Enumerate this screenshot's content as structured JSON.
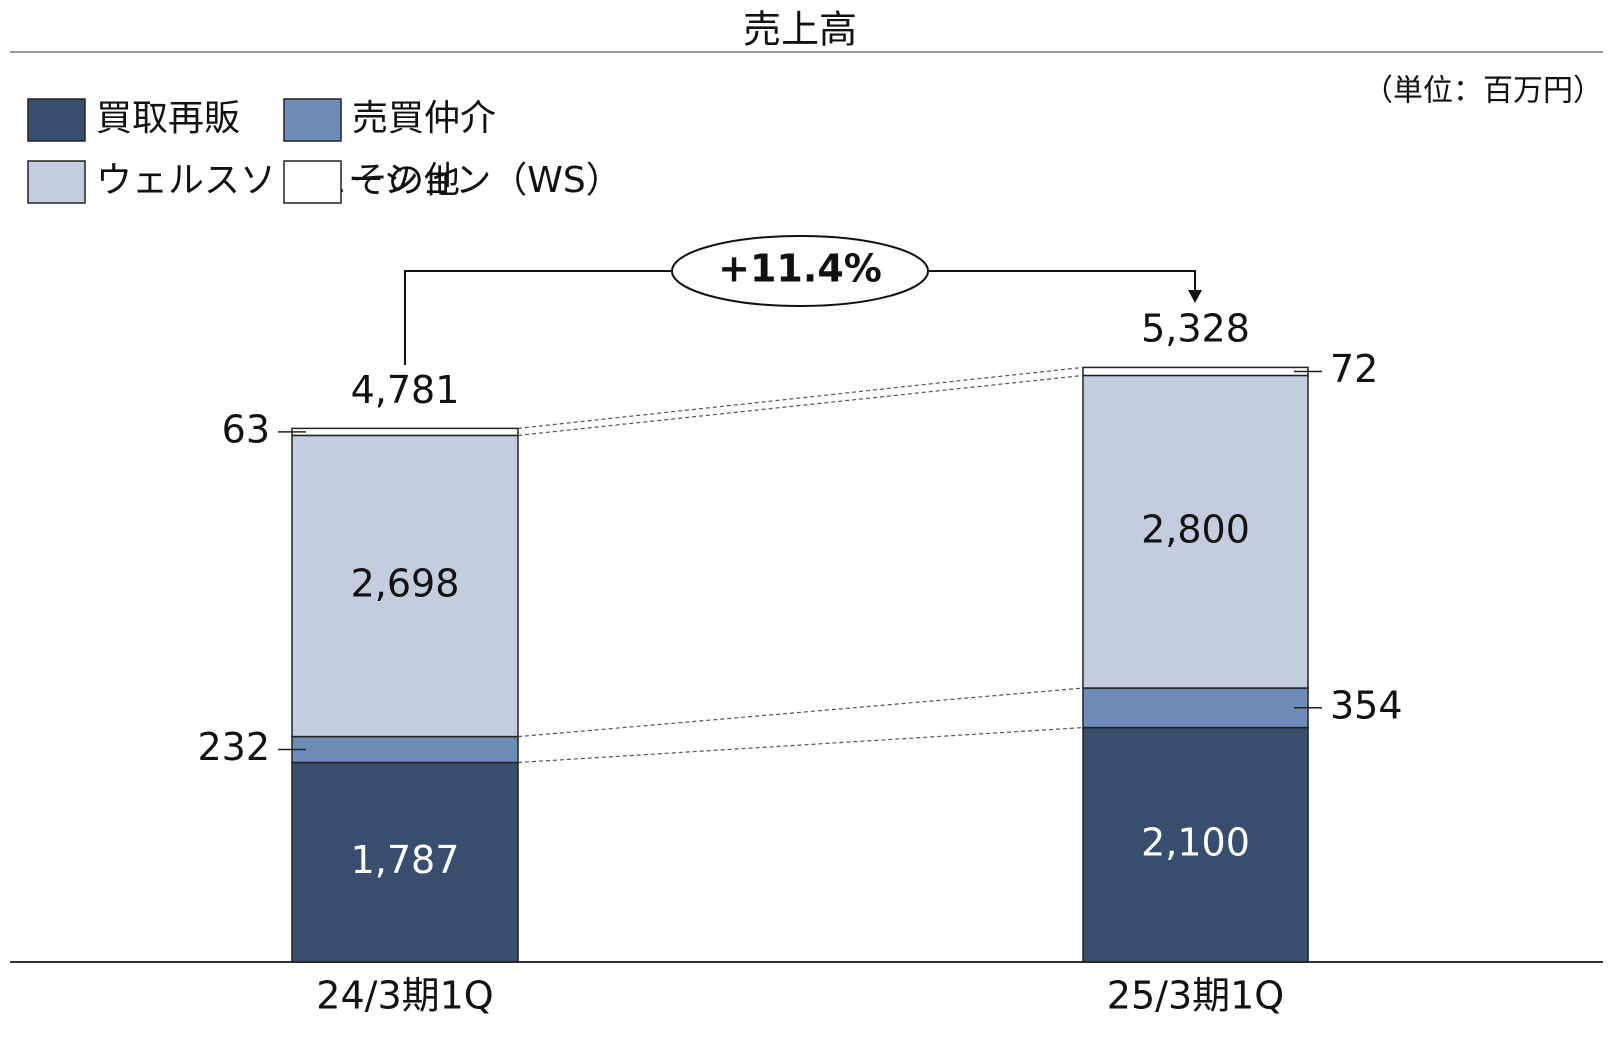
{
  "chart_data": {
    "type": "bar",
    "stacked": true,
    "title": "売上高",
    "unit": "（単位：百万円）",
    "categories": [
      "24/3期1Q",
      "25/3期1Q"
    ],
    "series": [
      {
        "name": "買取再販",
        "color": "#394e6e",
        "values": [
          1787,
          2100
        ],
        "value_labels": [
          "1,787",
          "2,100"
        ]
      },
      {
        "name": "売買仲介",
        "color": "#6e8cb8",
        "values": [
          232,
          354
        ]
      },
      {
        "name": "ウェルスソリューション（WS）",
        "color": "#c3cde0",
        "values": [
          2698,
          2800
        ],
        "value_labels": [
          "2,698",
          "2,800"
        ]
      },
      {
        "name": "その他",
        "color": "#ffffff",
        "values": [
          63,
          72
        ]
      }
    ],
    "totals": [
      4781,
      5328
    ],
    "total_labels": [
      "4,781",
      "5,328"
    ],
    "annotation": "+11.4%",
    "ylim": [
      0,
      5500
    ]
  }
}
